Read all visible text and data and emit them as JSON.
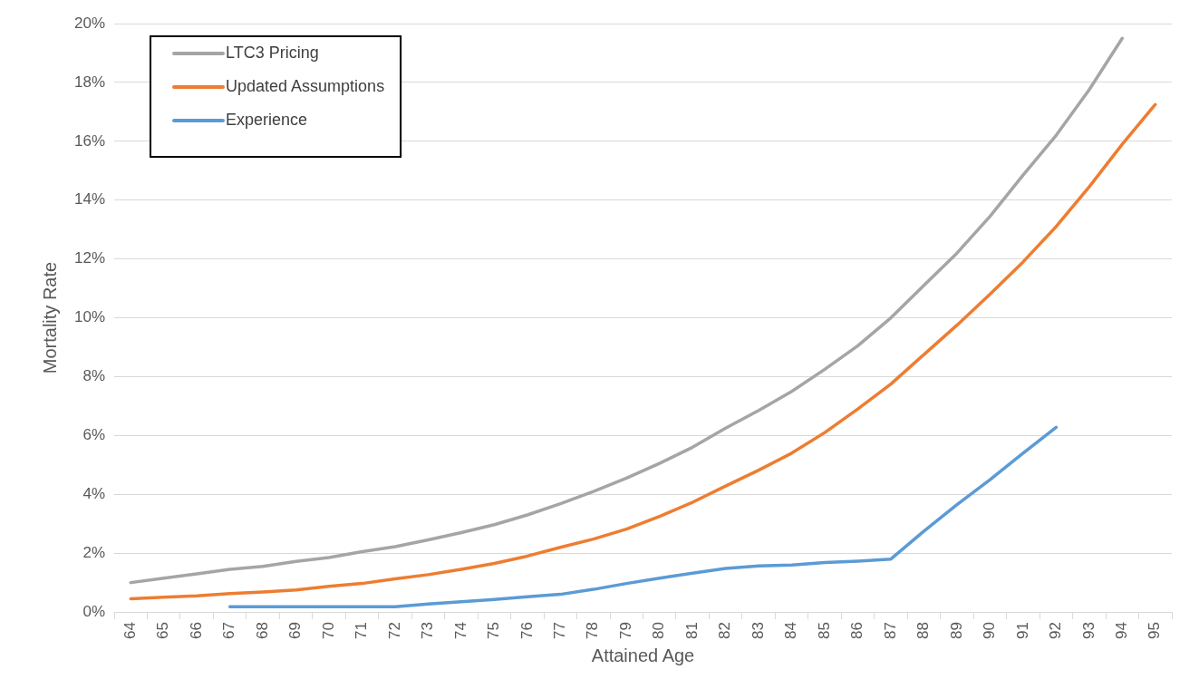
{
  "chart_data": {
    "type": "line",
    "xlabel": "Attained Age",
    "ylabel": "Mortality Rate",
    "categories": [
      "64",
      "65",
      "66",
      "67",
      "68",
      "69",
      "70",
      "71",
      "72",
      "73",
      "74",
      "75",
      "76",
      "77",
      "78",
      "79",
      "80",
      "81",
      "82",
      "83",
      "84",
      "85",
      "86",
      "87",
      "88",
      "89",
      "90",
      "91",
      "92",
      "93",
      "94",
      "95"
    ],
    "series": [
      {
        "name": "LTC3 Pricing",
        "color": "#a5a5a5",
        "values": [
          1.0,
          1.15,
          1.3,
          1.45,
          1.55,
          1.72,
          1.85,
          2.05,
          2.22,
          2.45,
          2.7,
          2.97,
          3.3,
          3.68,
          4.1,
          4.55,
          5.05,
          5.6,
          6.25,
          6.85,
          7.5,
          8.25,
          9.05,
          10.0,
          11.1,
          12.2,
          13.45,
          14.85,
          16.2,
          17.75,
          19.5,
          null
        ]
      },
      {
        "name": "Updated Assumptions",
        "color": "#ed7d31",
        "values": [
          0.45,
          0.5,
          0.55,
          0.63,
          0.68,
          0.75,
          0.87,
          0.97,
          1.13,
          1.27,
          1.45,
          1.65,
          1.9,
          2.2,
          2.48,
          2.82,
          3.25,
          3.73,
          4.28,
          4.82,
          5.4,
          6.1,
          6.9,
          7.75,
          8.75,
          9.75,
          10.8,
          11.9,
          13.1,
          14.45,
          15.9,
          17.25
        ]
      },
      {
        "name": "Experience",
        "color": "#5b9bd5",
        "values": [
          null,
          null,
          null,
          0.18,
          0.18,
          0.18,
          0.18,
          0.18,
          0.18,
          0.27,
          0.35,
          0.43,
          0.52,
          0.6,
          0.77,
          0.97,
          1.15,
          1.32,
          1.48,
          1.57,
          1.6,
          1.68,
          1.73,
          1.8,
          2.75,
          3.65,
          4.5,
          5.4,
          6.28,
          null,
          null,
          null
        ]
      }
    ],
    "ylim": [
      0,
      20
    ],
    "yticks": [
      {
        "value": 0,
        "label": "0%"
      },
      {
        "value": 2,
        "label": "2%"
      },
      {
        "value": 4,
        "label": "4%"
      },
      {
        "value": 6,
        "label": "6%"
      },
      {
        "value": 8,
        "label": "8%"
      },
      {
        "value": 10,
        "label": "10%"
      },
      {
        "value": 12,
        "label": "12%"
      },
      {
        "value": 14,
        "label": "14%"
      },
      {
        "value": 16,
        "label": "16%"
      },
      {
        "value": 18,
        "label": "18%"
      },
      {
        "value": 20,
        "label": "20%"
      }
    ],
    "grid": "y",
    "legend": "top left",
    "marker": "none",
    "line_style": "solid"
  }
}
